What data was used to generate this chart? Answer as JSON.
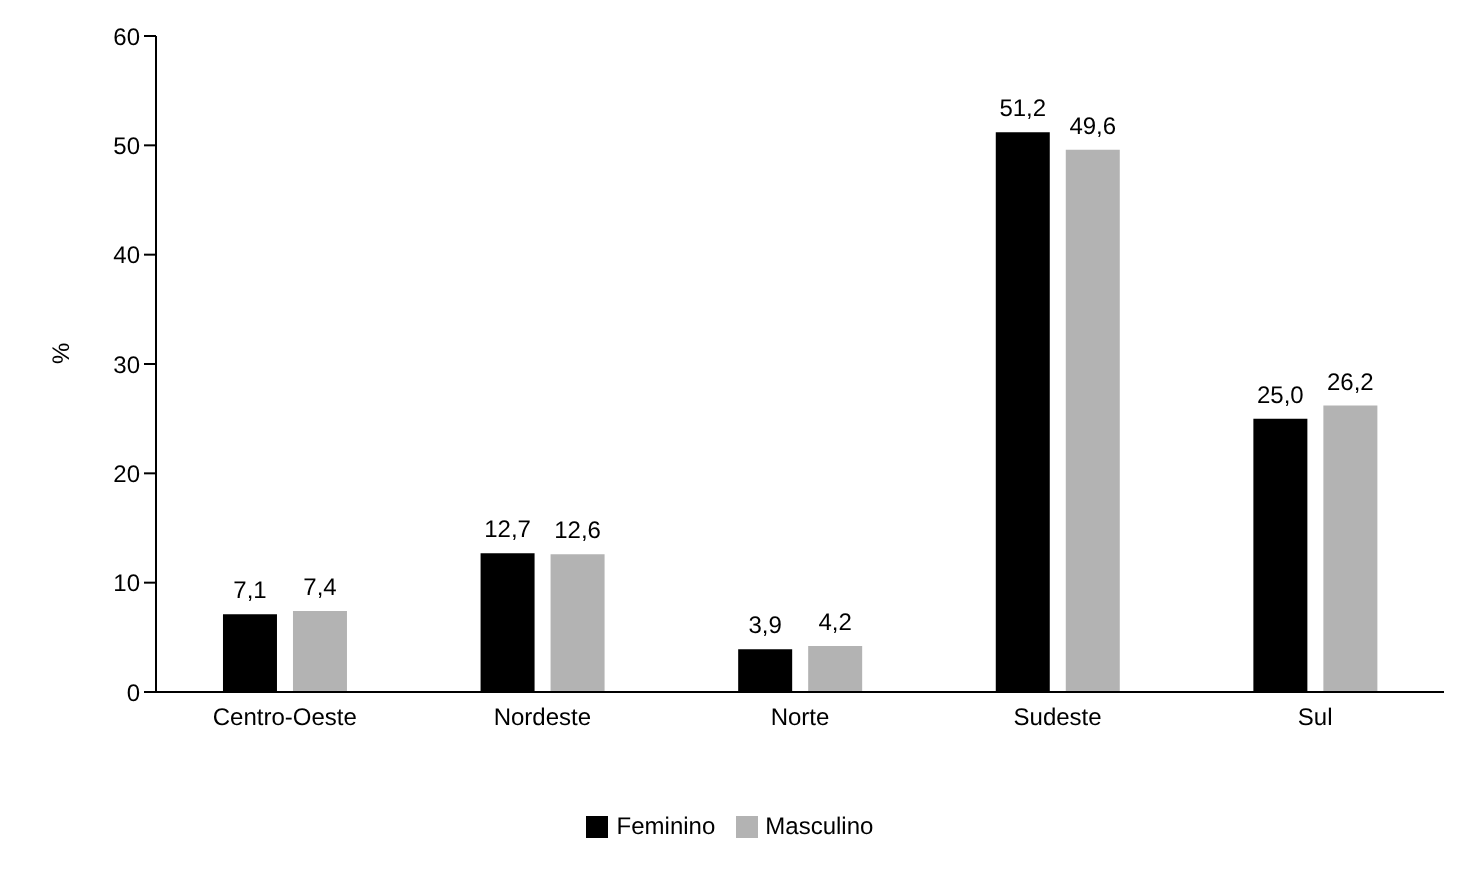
{
  "chart_data": {
    "type": "bar",
    "ylabel": "%",
    "categories": [
      "Centro-Oeste",
      "Nordeste",
      "Norte",
      "Sudeste",
      "Sul"
    ],
    "series": [
      {
        "name": "Feminino",
        "color": "#000000",
        "values": [
          7.1,
          12.7,
          3.9,
          51.2,
          25.0
        ],
        "value_labels": [
          "7,1",
          "12,7",
          "3,9",
          "51,2",
          "25,0"
        ]
      },
      {
        "name": "Masculino",
        "color": "#b3b3b3",
        "values": [
          7.4,
          12.6,
          4.2,
          49.6,
          26.2
        ],
        "value_labels": [
          "7,4",
          "12,6",
          "4,2",
          "49,6",
          "26,2"
        ]
      }
    ],
    "ylim": [
      0,
      60
    ],
    "yticks": [
      0,
      10,
      20,
      30,
      40,
      50,
      60
    ],
    "grid": false,
    "legend": "bottom"
  }
}
